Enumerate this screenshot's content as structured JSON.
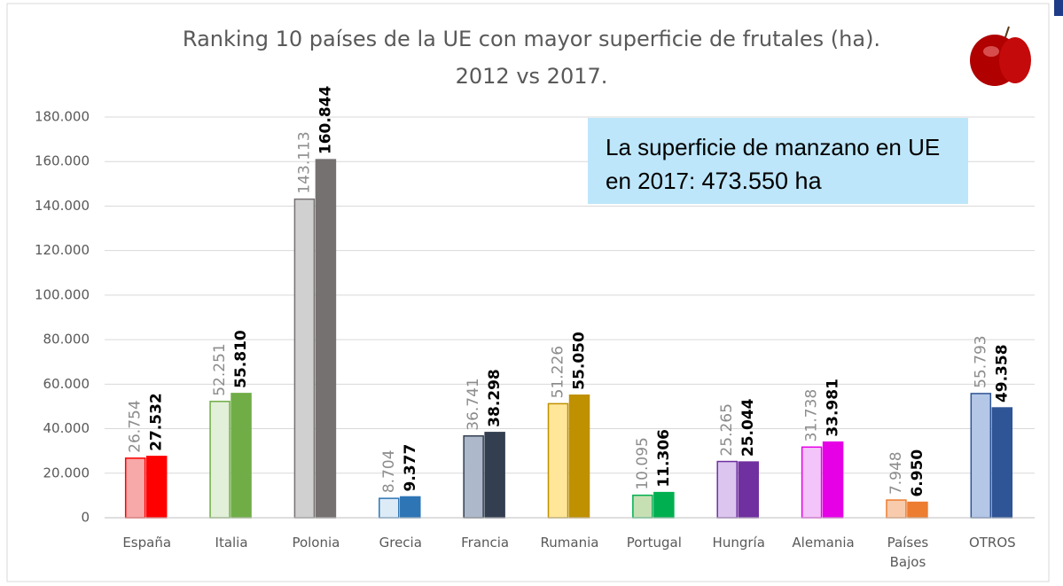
{
  "chart_data": {
    "type": "bar",
    "title": "Ranking 10 países de la UE con mayor superficie de frutales (ha).",
    "subtitle": "2012 vs 2017.",
    "annotation": {
      "text": "La superficie de manzano en UE en 2017:",
      "highlight": "473.550 ha"
    },
    "categories": [
      "España",
      "Italia",
      "Polonia",
      "Grecia",
      "Francia",
      "Rumania",
      "Portugal",
      "Hungría",
      "Alemania",
      "Países Bajos",
      "OTROS"
    ],
    "series": [
      {
        "colors": [
          "#f7a8a8",
          "#e2efd9",
          "#d0d0d0",
          "#ddebf7",
          "#adb9ca",
          "#ffe699",
          "#c6e0b4",
          "#dcc6f0",
          "#f3c4f9",
          "#f8cbad",
          "#b4c7e7"
        ],
        "values": [
          26754,
          52251,
          143113,
          8704,
          36741,
          51226,
          10095,
          25265,
          31738,
          7948,
          55793
        ],
        "value_labels": [
          "26.754",
          "52.251",
          "143.113",
          "8.704",
          "36.741",
          "51.226",
          "10.095",
          "25.265",
          "31.738",
          "7.948",
          "55.793"
        ]
      },
      {
        "colors": [
          "#ff0000",
          "#70ad47",
          "#767171",
          "#2e75b6",
          "#333f50",
          "#bf9000",
          "#00b050",
          "#7030a0",
          "#e600e6",
          "#ed7d31",
          "#2f5597"
        ],
        "values": [
          27532,
          55810,
          160844,
          9377,
          38298,
          55050,
          11306,
          25044,
          33981,
          6950,
          49358
        ],
        "value_labels": [
          "27.532",
          "55.810",
          "160.844",
          "9.377",
          "38.298",
          "55.050",
          "11.306",
          "25.044",
          "33.981",
          "6.950",
          "49.358"
        ]
      }
    ],
    "ylim": [
      0,
      180000
    ],
    "yticks": [
      0,
      {
        "value": 20000,
        "label": "20.000"
      },
      {
        "value": 40000,
        "label": "40.000"
      },
      {
        "value": 60000,
        "label": "60.000"
      },
      {
        "value": 80000,
        "label": "80.000"
      },
      {
        "value": 100000,
        "label": "100.000"
      },
      {
        "value": 120000,
        "label": "120.000"
      },
      {
        "value": 140000,
        "label": "140.000"
      },
      {
        "value": 160000,
        "label": "160.000"
      },
      {
        "value": 180000,
        "label": "180.000"
      }
    ],
    "grid": true
  }
}
